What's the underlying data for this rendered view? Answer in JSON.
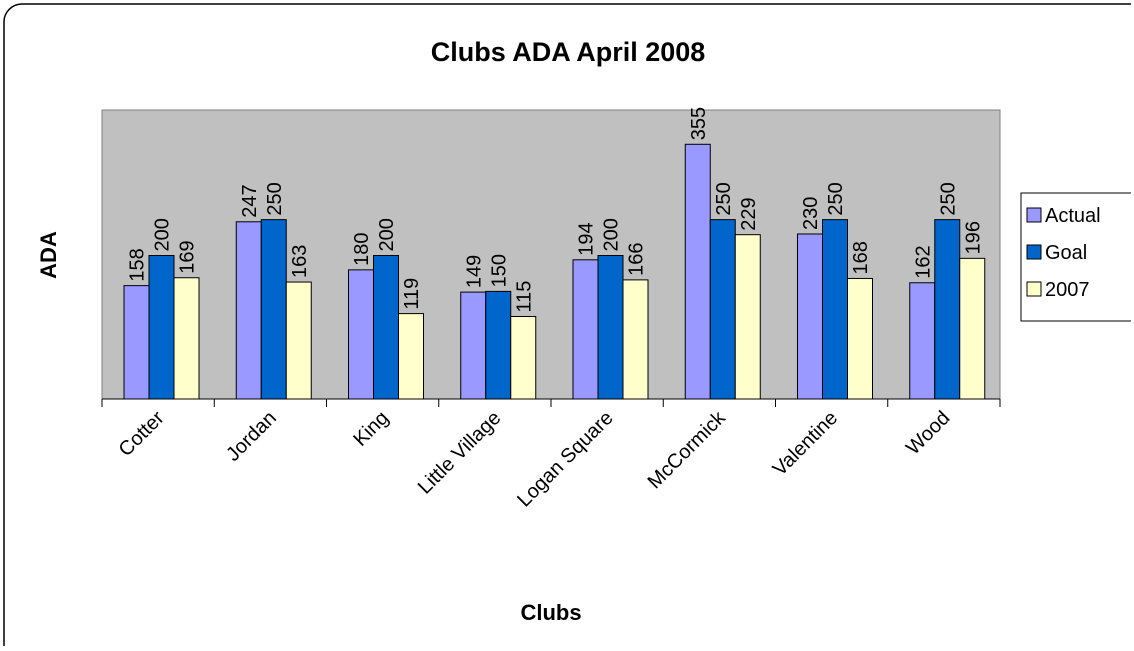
{
  "chart_data": {
    "type": "bar",
    "title": "Clubs ADA April 2008",
    "xlabel": "Clubs",
    "ylabel": "ADA",
    "categories": [
      "Cotter",
      "Jordan",
      "King",
      "Little Village",
      "Logan Square",
      "McCormick",
      "Valentine",
      "Wood"
    ],
    "series": [
      {
        "name": "Actual",
        "color": "#9999ff",
        "values": [
          158,
          247,
          180,
          149,
          194,
          355,
          230,
          162
        ]
      },
      {
        "name": "Goal",
        "color": "#0066cc",
        "values": [
          200,
          250,
          200,
          150,
          200,
          250,
          250,
          250
        ]
      },
      {
        "name": "2007",
        "color": "#ffffcc",
        "values": [
          169,
          163,
          119,
          115,
          166,
          229,
          168,
          196
        ]
      }
    ],
    "ylim": [
      0,
      400
    ],
    "grid": false,
    "legend": "right",
    "plot_background": "#c0c0c0"
  }
}
